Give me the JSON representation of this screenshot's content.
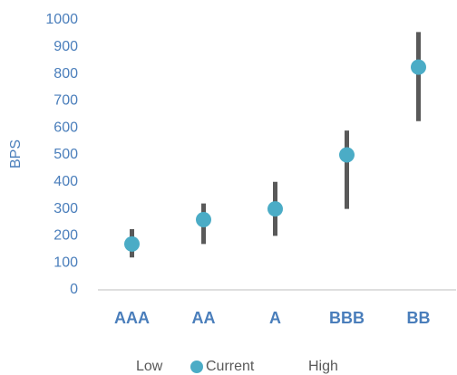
{
  "chart_data": {
    "type": "range",
    "y_label": "BPS",
    "categories": [
      "AAA",
      "AA",
      "A",
      "BBB",
      "BB"
    ],
    "series": [
      {
        "name": "Low",
        "color": "#595959",
        "values": [
          120,
          170,
          200,
          300,
          625
        ]
      },
      {
        "name": "Current",
        "color": "#4bacc6",
        "values": [
          170,
          260,
          300,
          500,
          825
        ]
      },
      {
        "name": "High",
        "color": "#595959",
        "values": [
          225,
          320,
          400,
          590,
          955
        ]
      }
    ],
    "ylim": [
      0,
      1000
    ],
    "yticks": [
      0,
      100,
      200,
      300,
      400,
      500,
      600,
      700,
      800,
      900,
      1000
    ],
    "grid": false
  }
}
